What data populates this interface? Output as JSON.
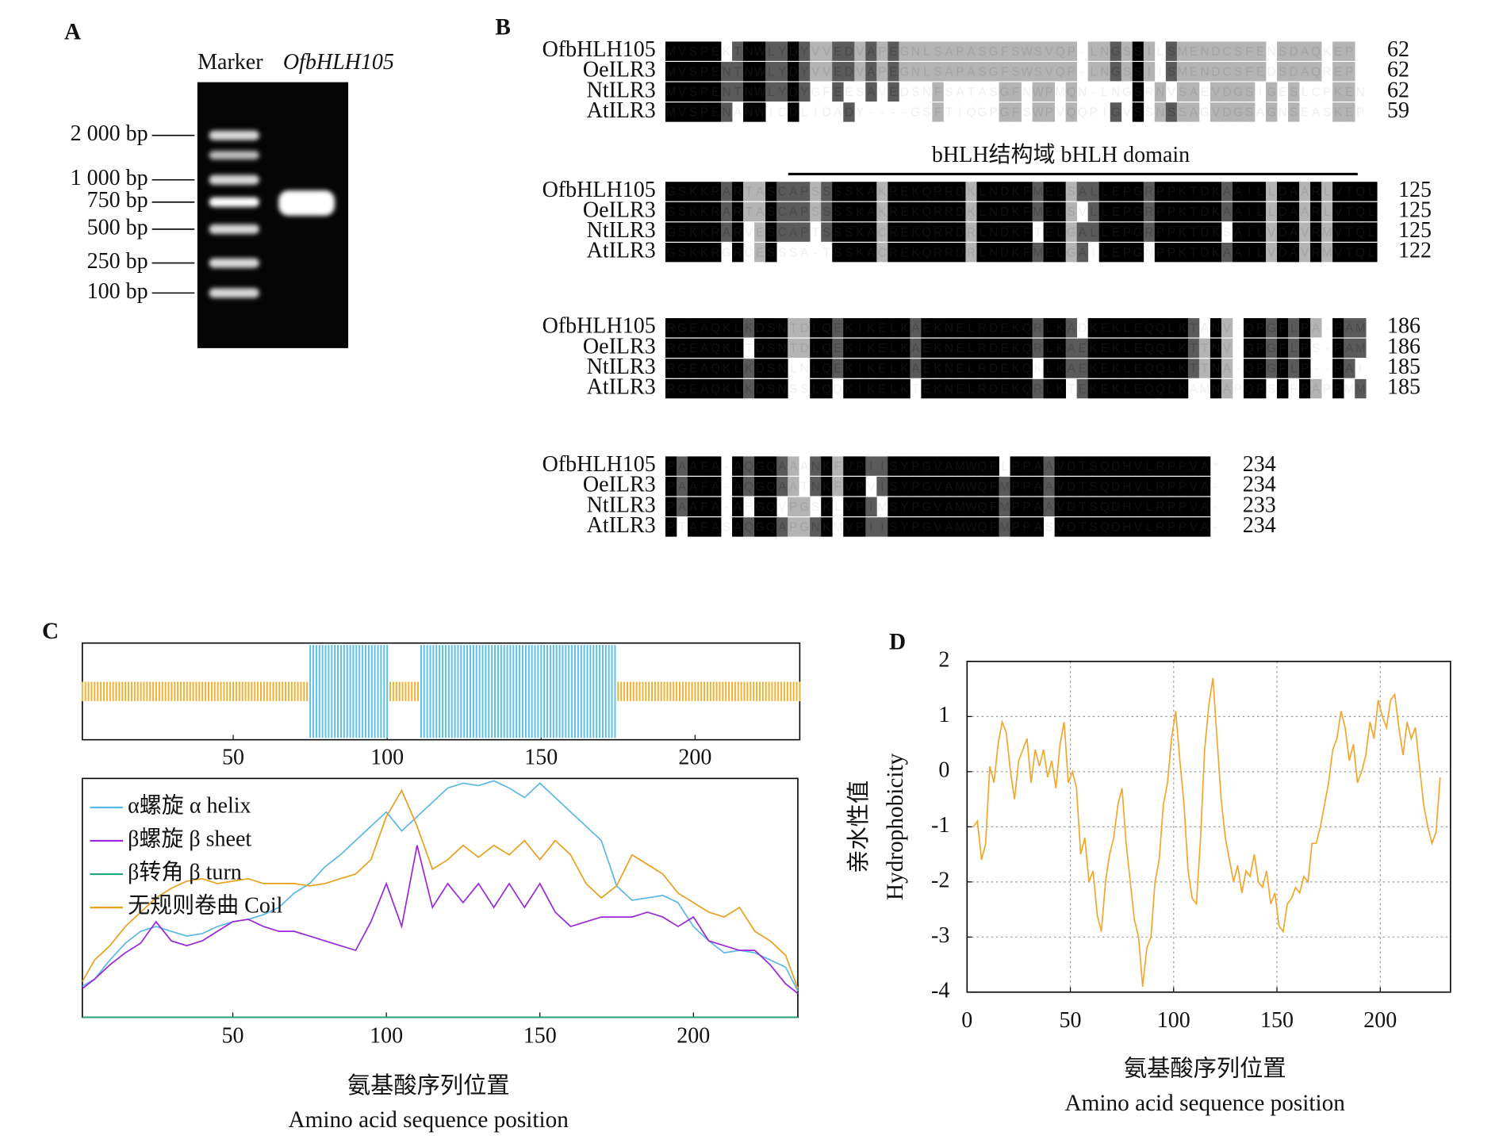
{
  "panel_labels": [
    "A",
    "B",
    "C",
    "D"
  ],
  "panels": {
    "A": {
      "lanes": [
        "Marker",
        "OfbHLH105"
      ],
      "markers": [
        "2 000 bp",
        "1 000 bp",
        "750 bp",
        "500 bp",
        "250 bp",
        "100 bp"
      ]
    },
    "B": {
      "domain_label": "bHLH结构域 bHLH domain",
      "blocks": [
        {
          "rows": [
            {
              "name": "OfbHLH105",
              "seq": "MVSPEKTNWLYDYVVEDVAPEGNLSAPASGFSWSVQP-LNGSSILSMENDCSFENSDAQKEP",
              "end": 62
            },
            {
              "name": "OeILR3",
              "seq": "MVSPENTNWLYDYVVEDVAPEGNLSAPASGFSWSVQP-LNGSSIISMENDCSFEDSDAQREP",
              "end": 62
            },
            {
              "name": "NtILR3",
              "seq": "MVSPENTNWLYDYGFEESAVEDSNFSATASGFNWPMQN-LNGSRNVSAEVDGSIGESLCPKEN",
              "end": 62
            },
            {
              "name": "AtILR3",
              "seq": "MVSPENANWICDLIDADY----GSFTIQGPGFSWPVQQPIGVSSNSSAGVDGSAGNSEASKEP",
              "end": 59
            }
          ]
        },
        {
          "rows": [
            {
              "name": "OfbHLH105",
              "seq": "GSKKRARTASCAPSSSSKAKREKQRRDKLNDKFMELSALLEPGRPPKTDKAAILLDAARLVTQL",
              "end": 125
            },
            {
              "name": "OeILR3",
              "seq": "GSKKRARTASCAPSSSSKAKREKQRRDKLNDKFMELSVLLEPGRPPKTDKAAILLDAARLVTQL",
              "end": 125
            },
            {
              "name": "NtILR3",
              "seq": "GSKKRARVESCAPTSSSKACREKQRRDRLNDKFTELGALLEPGRPPKTDKSAILVDAVRMVTQL",
              "end": 125
            },
            {
              "name": "AtILR3",
              "seq": "GSKKRGRCESSSA-TSSKACREKQRRDRLNDKFMELGAILEPGNPPKTDKAAILVDAVRMVTQL",
              "end": 122
            }
          ]
        },
        {
          "rows": [
            {
              "name": "OfbHLH105",
              "seq": "RGEAQKLKDSNTDLQEKIKELKAEKNELRDEKQRLKADKEKLEQQLKTANV-QPGFLPA-PAM",
              "end": 186
            },
            {
              "name": "OeILR3",
              "seq": "RGEAQKLTDSNTDLQEKIKELKAEKNELRDEKQRLKAEKEKLEQQLKTTNV-QPGFLPS-PAM",
              "end": 186
            },
            {
              "name": "NtILR3",
              "seq": "RGEAQKLKDSNLNLQEKIKELKAEKNELRDEKQKLKAEKEKLEQQLKTTNA-QPGFLP--PAI",
              "end": 185
            },
            {
              "name": "AtILR3",
              "seq": "RGEAQKLKDSNSSLQDKIKELKTEKNELRDEKQRLKTEKEKLEQQLKAMNAPQPSFFPAPPMM",
              "end": 185
            }
          ]
        },
        {
          "rows": [
            {
              "name": "OfbHLH105",
              "seq": "PAAFA-AQGQAAANKFVPIISYPGVAMWQFLPPAAVDTSQDHVLRPPVA*",
              "end": 234
            },
            {
              "name": "OeILR3",
              "seq": "PAAFA-AQGQAATNKFVPVISYPGVAMWQFMPPAAVDTSQDHVLRPPVA-",
              "end": 234
            },
            {
              "name": "NtILR3",
              "seq": "PAAFA-AHGQVPGSKLVPIMSYPGVAMWQFMPPAAVDTSQDHVLRPPVA-",
              "end": 233
            },
            {
              "name": "AtILR3",
              "seq": "PTAFASAQGQAPGNKMVPIISYPGVAMWQFMPPASVDTSQDHVLRPPVA-",
              "end": 234
            }
          ]
        }
      ]
    }
  },
  "chart_data": [
    {
      "type": "segments",
      "xlim": [
        1,
        234
      ],
      "xticks": [
        50,
        100,
        150,
        200
      ],
      "helix_color": "#5bc0e8",
      "coil_color": "#f0b030",
      "helix": [
        [
          75,
          100
        ],
        [
          111,
          174
        ]
      ],
      "coil": [
        [
          1,
          74
        ],
        [
          101,
          110
        ],
        [
          175,
          234
        ]
      ]
    },
    {
      "type": "line",
      "xlim": [
        1,
        234
      ],
      "ylim": [
        0,
        1
      ],
      "xticks": [
        50,
        100,
        150,
        200
      ],
      "legend": "upper left",
      "xlabel": "氨基酸序列位置",
      "xlabel_en": "Amino acid sequence position",
      "x": [
        1,
        5,
        10,
        15,
        20,
        25,
        30,
        35,
        40,
        45,
        50,
        55,
        60,
        65,
        70,
        75,
        80,
        85,
        90,
        95,
        100,
        105,
        110,
        115,
        120,
        125,
        130,
        135,
        140,
        145,
        150,
        155,
        160,
        165,
        170,
        175,
        180,
        185,
        190,
        195,
        200,
        205,
        210,
        215,
        220,
        225,
        230,
        234
      ],
      "series": [
        {
          "name": "α螺旋 α helix",
          "color": "#5bb8e6",
          "values": [
            0.13,
            0.16,
            0.24,
            0.31,
            0.36,
            0.38,
            0.36,
            0.34,
            0.35,
            0.38,
            0.4,
            0.41,
            0.43,
            0.46,
            0.52,
            0.56,
            0.63,
            0.68,
            0.74,
            0.8,
            0.86,
            0.78,
            0.84,
            0.9,
            0.96,
            0.98,
            0.97,
            0.99,
            0.96,
            0.92,
            0.98,
            0.92,
            0.86,
            0.8,
            0.74,
            0.55,
            0.49,
            0.5,
            0.51,
            0.48,
            0.38,
            0.32,
            0.27,
            0.28,
            0.27,
            0.24,
            0.21,
            0.11
          ]
        },
        {
          "name": "β螺旋 β sheet",
          "color": "#9a28d8",
          "values": [
            0.12,
            0.16,
            0.22,
            0.27,
            0.31,
            0.4,
            0.32,
            0.3,
            0.32,
            0.36,
            0.4,
            0.41,
            0.38,
            0.36,
            0.36,
            0.34,
            0.32,
            0.3,
            0.28,
            0.4,
            0.56,
            0.38,
            0.72,
            0.46,
            0.56,
            0.48,
            0.56,
            0.46,
            0.56,
            0.46,
            0.56,
            0.44,
            0.38,
            0.4,
            0.42,
            0.42,
            0.42,
            0.44,
            0.42,
            0.38,
            0.42,
            0.32,
            0.3,
            0.28,
            0.28,
            0.22,
            0.14,
            0.1
          ]
        },
        {
          "name": "β转角 β turn",
          "color": "#1fa67a",
          "values": [
            0,
            0,
            0,
            0,
            0,
            0,
            0,
            0,
            0,
            0,
            0,
            0,
            0,
            0,
            0,
            0,
            0,
            0,
            0,
            0,
            0,
            0,
            0,
            0,
            0,
            0,
            0,
            0,
            0,
            0,
            0,
            0,
            0,
            0,
            0,
            0,
            0,
            0,
            0,
            0,
            0,
            0,
            0,
            0,
            0,
            0,
            0,
            0
          ]
        },
        {
          "name": "无规则卷曲 Coil",
          "color": "#e8a020",
          "values": [
            0.15,
            0.24,
            0.3,
            0.38,
            0.44,
            0.5,
            0.54,
            0.57,
            0.58,
            0.56,
            0.57,
            0.58,
            0.56,
            0.56,
            0.56,
            0.55,
            0.56,
            0.58,
            0.6,
            0.66,
            0.84,
            0.95,
            0.8,
            0.62,
            0.66,
            0.72,
            0.67,
            0.72,
            0.68,
            0.74,
            0.66,
            0.74,
            0.68,
            0.56,
            0.5,
            0.55,
            0.68,
            0.64,
            0.6,
            0.52,
            0.48,
            0.44,
            0.42,
            0.46,
            0.36,
            0.32,
            0.26,
            0.12
          ]
        }
      ]
    },
    {
      "type": "line",
      "xlim": [
        0,
        234
      ],
      "ylim": [
        -4,
        2
      ],
      "xticks": [
        0,
        50,
        100,
        150,
        200
      ],
      "yticks": [
        2,
        1,
        0,
        -1,
        -2,
        -3,
        -4
      ],
      "grid": true,
      "color": "#f0a830",
      "ylabel": "亲水性值",
      "ylabel_en": "Hydrophobicity",
      "xlabel": "氨基酸序列位置",
      "xlabel_en": "Amino acid sequence position",
      "x": [
        3,
        5,
        7,
        9,
        11,
        13,
        15,
        17,
        19,
        21,
        23,
        25,
        27,
        29,
        31,
        33,
        35,
        37,
        39,
        41,
        43,
        45,
        47,
        49,
        51,
        53,
        55,
        57,
        59,
        61,
        63,
        65,
        67,
        69,
        71,
        73,
        75,
        77,
        79,
        81,
        83,
        85,
        87,
        89,
        91,
        93,
        95,
        97,
        99,
        101,
        103,
        105,
        107,
        109,
        111,
        113,
        115,
        117,
        119,
        121,
        123,
        125,
        127,
        129,
        131,
        133,
        135,
        137,
        139,
        141,
        143,
        145,
        147,
        149,
        151,
        153,
        155,
        157,
        159,
        161,
        163,
        165,
        167,
        169,
        171,
        173,
        175,
        177,
        179,
        181,
        183,
        185,
        187,
        189,
        191,
        193,
        195,
        197,
        199,
        201,
        203,
        205,
        207,
        209,
        211,
        213,
        215,
        217,
        219,
        221,
        223,
        225,
        227,
        229
      ],
      "values": [
        -1.0,
        -0.9,
        -1.6,
        -1.3,
        0.1,
        -0.2,
        0.5,
        0.9,
        0.7,
        0.0,
        -0.5,
        0.2,
        0.4,
        0.6,
        -0.2,
        0.4,
        0.1,
        0.4,
        -0.1,
        0.2,
        -0.3,
        0.5,
        0.9,
        -0.2,
        0.0,
        -0.3,
        -1.5,
        -1.2,
        -2.0,
        -1.8,
        -2.6,
        -2.9,
        -2.0,
        -1.5,
        -1.2,
        -0.6,
        -0.3,
        -1.3,
        -2.0,
        -2.7,
        -3.0,
        -3.9,
        -3.2,
        -3.0,
        -2.0,
        -1.6,
        -0.6,
        -0.2,
        0.6,
        1.1,
        0.2,
        -0.6,
        -1.8,
        -2.3,
        -2.4,
        -1.2,
        0.4,
        1.2,
        1.7,
        0.6,
        -0.5,
        -1.2,
        -1.6,
        -2.0,
        -1.7,
        -2.2,
        -1.8,
        -1.9,
        -1.5,
        -2.0,
        -2.1,
        -1.8,
        -2.4,
        -2.2,
        -2.8,
        -2.9,
        -2.4,
        -2.3,
        -2.1,
        -2.2,
        -1.9,
        -2.0,
        -1.3,
        -1.3,
        -1.0,
        -0.6,
        -0.2,
        0.4,
        0.6,
        1.1,
        0.8,
        0.2,
        0.5,
        -0.2,
        0.0,
        0.3,
        0.9,
        0.6,
        1.3,
        1.0,
        0.8,
        1.3,
        1.4,
        0.8,
        0.3,
        0.9,
        0.6,
        0.8,
        0.1,
        -0.6,
        -1.0,
        -1.3,
        -1.1,
        -0.1
      ]
    }
  ]
}
